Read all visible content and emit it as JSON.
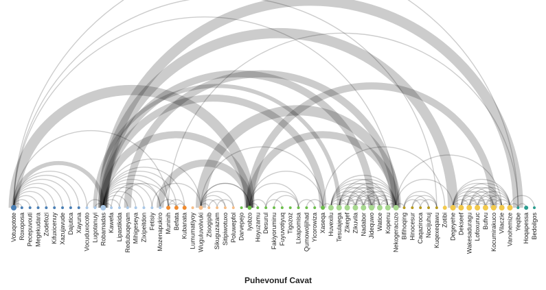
{
  "chart_data": {
    "type": "arc-diagram",
    "title": "Puhevonuf Cavat",
    "nodes": [
      {
        "name": "Votuqotote",
        "group": 0,
        "size": 4
      },
      {
        "name": "Roxoposa",
        "group": 0,
        "size": 2
      },
      {
        "name": "Pecepuvouti",
        "group": 0,
        "size": 2
      },
      {
        "name": "Megekudara",
        "group": 0,
        "size": 2
      },
      {
        "name": "Zodefozi",
        "group": 0,
        "size": 2
      },
      {
        "name": "Kifuxicenuy",
        "group": 0,
        "size": 2
      },
      {
        "name": "Xazujavude",
        "group": 0,
        "size": 2
      },
      {
        "name": "Dajutica",
        "group": 0,
        "size": 2
      },
      {
        "name": "Xayuna",
        "group": 0,
        "size": 2
      },
      {
        "name": "Vocuduxocoto",
        "group": 1,
        "size": 2
      },
      {
        "name": "Lugotanuyi",
        "group": 1,
        "size": 2
      },
      {
        "name": "Robamadas",
        "group": 1,
        "size": 4
      },
      {
        "name": "Kawefa",
        "group": 1,
        "size": 2
      },
      {
        "name": "Lipastikida",
        "group": 1,
        "size": 2
      },
      {
        "name": "Redubuqeyam",
        "group": 1,
        "size": 2
      },
      {
        "name": "Mihigeseya",
        "group": 1,
        "size": 2
      },
      {
        "name": "Zixipeitdon",
        "group": 1,
        "size": 2
      },
      {
        "name": "Fetisiy",
        "group": 1,
        "size": 2
      },
      {
        "name": "Mozenapukiro",
        "group": 1,
        "size": 2
      },
      {
        "name": "Muninih",
        "group": 2,
        "size": 3
      },
      {
        "name": "Befata",
        "group": 2,
        "size": 3
      },
      {
        "name": "Kubanata",
        "group": 2,
        "size": 3
      },
      {
        "name": "Lumumatiyoy",
        "group": 3,
        "size": 2
      },
      {
        "name": "Wuguluvolvuki",
        "group": 3,
        "size": 3
      },
      {
        "name": "Zisogipib",
        "group": 3,
        "size": 2
      },
      {
        "name": "Sikuguzazam",
        "group": 3,
        "size": 2
      },
      {
        "name": "Sitipiwotuxo",
        "group": 3,
        "size": 2
      },
      {
        "name": "Poluwepfol",
        "group": 3,
        "size": 2
      },
      {
        "name": "Darvepejo",
        "group": 4,
        "size": 2
      },
      {
        "name": "Iyobzo",
        "group": 4,
        "size": 3
      },
      {
        "name": "Hoyuzamu",
        "group": 4,
        "size": 2
      },
      {
        "name": "Desurul",
        "group": 4,
        "size": 2
      },
      {
        "name": "Fakiyoruminu",
        "group": 4,
        "size": 2
      },
      {
        "name": "Fuyuvotiyuq",
        "group": 4,
        "size": 2
      },
      {
        "name": "Tigozoz",
        "group": 4,
        "size": 2
      },
      {
        "name": "Lixapomisa",
        "group": 4,
        "size": 2
      },
      {
        "name": "Qumowoljihad",
        "group": 4,
        "size": 2
      },
      {
        "name": "Yicorowiza",
        "group": 4,
        "size": 2
      },
      {
        "name": "Xaseqa",
        "group": 4,
        "size": 3
      },
      {
        "name": "Huvexilu",
        "group": 5,
        "size": 4
      },
      {
        "name": "Tesulajega",
        "group": 5,
        "size": 4
      },
      {
        "name": "Zikegef",
        "group": 5,
        "size": 4
      },
      {
        "name": "Zikuvila",
        "group": 5,
        "size": 4
      },
      {
        "name": "Nadabor",
        "group": 5,
        "size": 4
      },
      {
        "name": "Jidequwo",
        "group": 5,
        "size": 4
      },
      {
        "name": "Watice",
        "group": 5,
        "size": 4
      },
      {
        "name": "Kopenu",
        "group": 5,
        "size": 4
      },
      {
        "name": "Nekogeracuzo",
        "group": 5,
        "size": 4
      },
      {
        "name": "Bifihoqing",
        "group": 6,
        "size": 2
      },
      {
        "name": "Hinocesur",
        "group": 6,
        "size": 2
      },
      {
        "name": "Caqaziroca",
        "group": 6,
        "size": 2
      },
      {
        "name": "Nocijuhuj",
        "group": 6,
        "size": 2
      },
      {
        "name": "Kuqexeqawu",
        "group": 6,
        "size": 2
      },
      {
        "name": "Zotibi",
        "group": 7,
        "size": 3
      },
      {
        "name": "Degeyehe",
        "group": 7,
        "size": 4
      },
      {
        "name": "Dekseef",
        "group": 7,
        "size": 4
      },
      {
        "name": "Wakesaduragu",
        "group": 7,
        "size": 4
      },
      {
        "name": "Lofoxunuc",
        "group": 7,
        "size": 4
      },
      {
        "name": "Bufivu",
        "group": 7,
        "size": 4
      },
      {
        "name": "Kocumirakuco",
        "group": 7,
        "size": 4
      },
      {
        "name": "Vilaczie",
        "group": 7,
        "size": 4
      },
      {
        "name": "Vanohemize",
        "group": 7,
        "size": 4
      },
      {
        "name": "Yeqibe",
        "group": 8,
        "size": 2
      },
      {
        "name": "Hoqapessa",
        "group": 8,
        "size": 3
      },
      {
        "name": "Bedoilgos",
        "group": 8,
        "size": 2
      }
    ],
    "group_colors": [
      "#4a7fb5",
      "#a9c8e8",
      "#ef8a2e",
      "#f6bd86",
      "#6cbf4a",
      "#a7d88f",
      "#b79a1e",
      "#f2c94c",
      "#2a9d8f"
    ],
    "links": [
      {
        "source": 0,
        "target": 1,
        "value": 1
      },
      {
        "source": 0,
        "target": 2,
        "value": 1
      },
      {
        "source": 0,
        "target": 3,
        "value": 1
      },
      {
        "source": 0,
        "target": 4,
        "value": 1
      },
      {
        "source": 0,
        "target": 5,
        "value": 1
      },
      {
        "source": 0,
        "target": 6,
        "value": 1
      },
      {
        "source": 0,
        "target": 7,
        "value": 1
      },
      {
        "source": 0,
        "target": 8,
        "value": 1
      },
      {
        "source": 0,
        "target": 9,
        "value": 1
      },
      {
        "source": 0,
        "target": 11,
        "value": 2
      },
      {
        "source": 0,
        "target": 19,
        "value": 1
      },
      {
        "source": 0,
        "target": 29,
        "value": 4
      },
      {
        "source": 0,
        "target": 47,
        "value": 1
      },
      {
        "source": 0,
        "target": 52,
        "value": 1
      },
      {
        "source": 0,
        "target": 62,
        "value": 1
      },
      {
        "source": 11,
        "target": 12,
        "value": 1
      },
      {
        "source": 11,
        "target": 13,
        "value": 1
      },
      {
        "source": 11,
        "target": 14,
        "value": 1
      },
      {
        "source": 11,
        "target": 15,
        "value": 1
      },
      {
        "source": 11,
        "target": 16,
        "value": 1
      },
      {
        "source": 11,
        "target": 17,
        "value": 1
      },
      {
        "source": 11,
        "target": 18,
        "value": 1
      },
      {
        "source": 9,
        "target": 11,
        "value": 1
      },
      {
        "source": 10,
        "target": 11,
        "value": 1
      },
      {
        "source": 10,
        "target": 40,
        "value": 2
      },
      {
        "source": 11,
        "target": 19,
        "value": 1
      },
      {
        "source": 11,
        "target": 20,
        "value": 1
      },
      {
        "source": 11,
        "target": 21,
        "value": 1
      },
      {
        "source": 11,
        "target": 23,
        "value": 1
      },
      {
        "source": 11,
        "target": 29,
        "value": 3
      },
      {
        "source": 11,
        "target": 38,
        "value": 3
      },
      {
        "source": 11,
        "target": 44,
        "value": 3
      },
      {
        "source": 11,
        "target": 54,
        "value": 4
      },
      {
        "source": 11,
        "target": 62,
        "value": 4
      },
      {
        "source": 12,
        "target": 18,
        "value": 1
      },
      {
        "source": 13,
        "target": 19,
        "value": 1
      },
      {
        "source": 14,
        "target": 47,
        "value": 3
      },
      {
        "source": 17,
        "target": 23,
        "value": 1
      },
      {
        "source": 18,
        "target": 20,
        "value": 1
      },
      {
        "source": 19,
        "target": 21,
        "value": 1
      },
      {
        "source": 19,
        "target": 20,
        "value": 1
      },
      {
        "source": 20,
        "target": 21,
        "value": 1
      },
      {
        "source": 18,
        "target": 29,
        "value": 3
      },
      {
        "source": 19,
        "target": 62,
        "value": 1
      },
      {
        "source": 23,
        "target": 24,
        "value": 1
      },
      {
        "source": 23,
        "target": 25,
        "value": 1
      },
      {
        "source": 23,
        "target": 26,
        "value": 1
      },
      {
        "source": 23,
        "target": 27,
        "value": 1
      },
      {
        "source": 23,
        "target": 29,
        "value": 1
      },
      {
        "source": 23,
        "target": 38,
        "value": 1
      },
      {
        "source": 23,
        "target": 47,
        "value": 4
      },
      {
        "source": 23,
        "target": 29,
        "value": 1
      },
      {
        "source": 24,
        "target": 26,
        "value": 1
      },
      {
        "source": 25,
        "target": 27,
        "value": 1
      },
      {
        "source": 29,
        "target": 30,
        "value": 1
      },
      {
        "source": 29,
        "target": 31,
        "value": 1
      },
      {
        "source": 29,
        "target": 35,
        "value": 1
      },
      {
        "source": 29,
        "target": 38,
        "value": 1
      },
      {
        "source": 29,
        "target": 47,
        "value": 3
      },
      {
        "source": 29,
        "target": 59,
        "value": 3
      },
      {
        "source": 31,
        "target": 33,
        "value": 1
      },
      {
        "source": 31,
        "target": 35,
        "value": 1
      },
      {
        "source": 32,
        "target": 35,
        "value": 1
      },
      {
        "source": 35,
        "target": 37,
        "value": 1
      },
      {
        "source": 36,
        "target": 38,
        "value": 1
      },
      {
        "source": 38,
        "target": 39,
        "value": 1
      },
      {
        "source": 38,
        "target": 53,
        "value": 1
      },
      {
        "source": 39,
        "target": 40,
        "value": 1
      },
      {
        "source": 39,
        "target": 41,
        "value": 1
      },
      {
        "source": 39,
        "target": 42,
        "value": 1
      },
      {
        "source": 39,
        "target": 43,
        "value": 1
      },
      {
        "source": 39,
        "target": 44,
        "value": 1
      },
      {
        "source": 39,
        "target": 45,
        "value": 1
      },
      {
        "source": 39,
        "target": 46,
        "value": 1
      },
      {
        "source": 39,
        "target": 47,
        "value": 1
      },
      {
        "source": 40,
        "target": 41,
        "value": 1
      },
      {
        "source": 40,
        "target": 42,
        "value": 1
      },
      {
        "source": 40,
        "target": 43,
        "value": 1
      },
      {
        "source": 40,
        "target": 44,
        "value": 1
      },
      {
        "source": 40,
        "target": 45,
        "value": 1
      },
      {
        "source": 40,
        "target": 46,
        "value": 1
      },
      {
        "source": 40,
        "target": 47,
        "value": 1
      },
      {
        "source": 41,
        "target": 42,
        "value": 1
      },
      {
        "source": 41,
        "target": 43,
        "value": 1
      },
      {
        "source": 41,
        "target": 44,
        "value": 1
      },
      {
        "source": 41,
        "target": 45,
        "value": 1
      },
      {
        "source": 41,
        "target": 46,
        "value": 1
      },
      {
        "source": 41,
        "target": 47,
        "value": 1
      },
      {
        "source": 42,
        "target": 43,
        "value": 1
      },
      {
        "source": 42,
        "target": 44,
        "value": 1
      },
      {
        "source": 42,
        "target": 45,
        "value": 1
      },
      {
        "source": 42,
        "target": 46,
        "value": 1
      },
      {
        "source": 42,
        "target": 47,
        "value": 1
      },
      {
        "source": 43,
        "target": 44,
        "value": 1
      },
      {
        "source": 43,
        "target": 45,
        "value": 1
      },
      {
        "source": 43,
        "target": 46,
        "value": 1
      },
      {
        "source": 43,
        "target": 47,
        "value": 1
      },
      {
        "source": 44,
        "target": 45,
        "value": 1
      },
      {
        "source": 44,
        "target": 46,
        "value": 1
      },
      {
        "source": 44,
        "target": 47,
        "value": 1
      },
      {
        "source": 45,
        "target": 46,
        "value": 1
      },
      {
        "source": 45,
        "target": 47,
        "value": 1
      },
      {
        "source": 46,
        "target": 47,
        "value": 1
      },
      {
        "source": 47,
        "target": 48,
        "value": 1
      },
      {
        "source": 47,
        "target": 54,
        "value": 1
      },
      {
        "source": 47,
        "target": 60,
        "value": 1
      },
      {
        "source": 48,
        "target": 50,
        "value": 1
      },
      {
        "source": 48,
        "target": 51,
        "value": 1
      },
      {
        "source": 48,
        "target": 52,
        "value": 1
      },
      {
        "source": 49,
        "target": 51,
        "value": 1
      },
      {
        "source": 49,
        "target": 52,
        "value": 1
      },
      {
        "source": 50,
        "target": 52,
        "value": 1
      },
      {
        "source": 54,
        "target": 55,
        "value": 1
      },
      {
        "source": 54,
        "target": 56,
        "value": 1
      },
      {
        "source": 54,
        "target": 57,
        "value": 1
      },
      {
        "source": 54,
        "target": 58,
        "value": 1
      },
      {
        "source": 54,
        "target": 59,
        "value": 1
      },
      {
        "source": 54,
        "target": 60,
        "value": 1
      },
      {
        "source": 54,
        "target": 61,
        "value": 1
      },
      {
        "source": 55,
        "target": 56,
        "value": 1
      },
      {
        "source": 55,
        "target": 57,
        "value": 1
      },
      {
        "source": 55,
        "target": 58,
        "value": 1
      },
      {
        "source": 55,
        "target": 59,
        "value": 1
      },
      {
        "source": 55,
        "target": 60,
        "value": 1
      },
      {
        "source": 55,
        "target": 61,
        "value": 1
      },
      {
        "source": 56,
        "target": 57,
        "value": 1
      },
      {
        "source": 56,
        "target": 58,
        "value": 1
      },
      {
        "source": 56,
        "target": 59,
        "value": 1
      },
      {
        "source": 56,
        "target": 60,
        "value": 1
      },
      {
        "source": 56,
        "target": 61,
        "value": 1
      },
      {
        "source": 57,
        "target": 58,
        "value": 1
      },
      {
        "source": 57,
        "target": 59,
        "value": 1
      },
      {
        "source": 57,
        "target": 60,
        "value": 1
      },
      {
        "source": 57,
        "target": 61,
        "value": 1
      },
      {
        "source": 58,
        "target": 59,
        "value": 1
      },
      {
        "source": 58,
        "target": 60,
        "value": 1
      },
      {
        "source": 58,
        "target": 61,
        "value": 1
      },
      {
        "source": 59,
        "target": 60,
        "value": 1
      },
      {
        "source": 59,
        "target": 61,
        "value": 1
      },
      {
        "source": 60,
        "target": 61,
        "value": 1
      },
      {
        "source": 61,
        "target": 62,
        "value": 1
      },
      {
        "source": 61,
        "target": 64,
        "value": 1
      },
      {
        "source": 62,
        "target": 63,
        "value": 1
      }
    ]
  }
}
